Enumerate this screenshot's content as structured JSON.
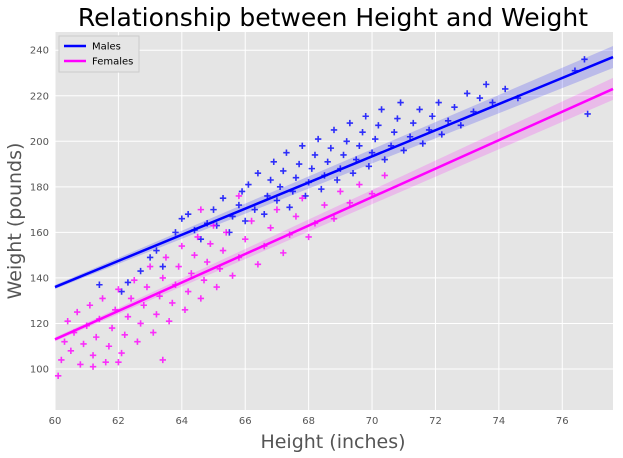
{
  "chart_data": {
    "type": "scatter",
    "title": "Relationship between Height and Weight",
    "xlabel": "Height (inches)",
    "ylabel": "Weight (pounds)",
    "xlim": [
      60,
      77.6
    ],
    "ylim": [
      82,
      248
    ],
    "x_ticks": [
      60,
      62,
      64,
      66,
      68,
      70,
      72,
      74,
      76
    ],
    "y_ticks": [
      100,
      120,
      140,
      160,
      180,
      200,
      220,
      240
    ],
    "grid": true,
    "legend_position": "top-left",
    "series": [
      {
        "name": "Males",
        "marker": "+",
        "color": "#0000ff",
        "fit_line": {
          "x": [
            60,
            77.6
          ],
          "y": [
            136,
            237
          ]
        },
        "points": [
          [
            61.4,
            137
          ],
          [
            62.1,
            134
          ],
          [
            62.3,
            138
          ],
          [
            62.7,
            143
          ],
          [
            63.0,
            149
          ],
          [
            63.2,
            152
          ],
          [
            63.4,
            145
          ],
          [
            63.8,
            160
          ],
          [
            64.0,
            166
          ],
          [
            64.2,
            168
          ],
          [
            64.4,
            161
          ],
          [
            64.6,
            157
          ],
          [
            64.8,
            164
          ],
          [
            65.0,
            170
          ],
          [
            65.1,
            163
          ],
          [
            65.3,
            175
          ],
          [
            65.5,
            160
          ],
          [
            65.6,
            167
          ],
          [
            65.8,
            172
          ],
          [
            65.9,
            178
          ],
          [
            66.0,
            165
          ],
          [
            66.1,
            181
          ],
          [
            66.3,
            170
          ],
          [
            66.4,
            186
          ],
          [
            66.6,
            168
          ],
          [
            66.7,
            176
          ],
          [
            66.8,
            183
          ],
          [
            66.9,
            191
          ],
          [
            67.0,
            174
          ],
          [
            67.1,
            180
          ],
          [
            67.2,
            187
          ],
          [
            67.3,
            195
          ],
          [
            67.4,
            171
          ],
          [
            67.5,
            178
          ],
          [
            67.6,
            184
          ],
          [
            67.7,
            190
          ],
          [
            67.8,
            198
          ],
          [
            67.9,
            176
          ],
          [
            68.0,
            182
          ],
          [
            68.1,
            188
          ],
          [
            68.2,
            194
          ],
          [
            68.3,
            201
          ],
          [
            68.4,
            179
          ],
          [
            68.5,
            185
          ],
          [
            68.6,
            191
          ],
          [
            68.7,
            197
          ],
          [
            68.8,
            205
          ],
          [
            68.9,
            183
          ],
          [
            69.0,
            188
          ],
          [
            69.1,
            194
          ],
          [
            69.2,
            200
          ],
          [
            69.3,
            208
          ],
          [
            69.4,
            186
          ],
          [
            69.5,
            192
          ],
          [
            69.6,
            198
          ],
          [
            69.7,
            204
          ],
          [
            69.8,
            211
          ],
          [
            69.9,
            189
          ],
          [
            70.0,
            195
          ],
          [
            70.1,
            201
          ],
          [
            70.2,
            207
          ],
          [
            70.3,
            214
          ],
          [
            70.4,
            192
          ],
          [
            70.6,
            198
          ],
          [
            70.7,
            204
          ],
          [
            70.8,
            210
          ],
          [
            70.9,
            217
          ],
          [
            71.0,
            196
          ],
          [
            71.2,
            202
          ],
          [
            71.3,
            208
          ],
          [
            71.5,
            214
          ],
          [
            71.6,
            199
          ],
          [
            71.8,
            205
          ],
          [
            71.9,
            211
          ],
          [
            72.1,
            217
          ],
          [
            72.2,
            203
          ],
          [
            72.4,
            209
          ],
          [
            72.6,
            215
          ],
          [
            72.8,
            207
          ],
          [
            73.0,
            221
          ],
          [
            73.2,
            213
          ],
          [
            73.4,
            219
          ],
          [
            73.6,
            225
          ],
          [
            73.8,
            217
          ],
          [
            74.2,
            223
          ],
          [
            74.6,
            219
          ],
          [
            76.4,
            231
          ],
          [
            76.7,
            236
          ],
          [
            76.8,
            212
          ]
        ]
      },
      {
        "name": "Females",
        "marker": "+",
        "color": "#ff00ff",
        "fit_line": {
          "x": [
            60,
            77.6
          ],
          "y": [
            113,
            223
          ]
        },
        "points": [
          [
            60.1,
            97
          ],
          [
            60.2,
            104
          ],
          [
            60.3,
            112
          ],
          [
            60.4,
            121
          ],
          [
            60.5,
            108
          ],
          [
            60.6,
            116
          ],
          [
            60.7,
            125
          ],
          [
            60.8,
            102
          ],
          [
            60.9,
            111
          ],
          [
            61.0,
            119
          ],
          [
            61.1,
            128
          ],
          [
            61.2,
            106
          ],
          [
            61.3,
            114
          ],
          [
            61.4,
            122
          ],
          [
            61.5,
            131
          ],
          [
            61.6,
            103
          ],
          [
            61.7,
            110
          ],
          [
            61.8,
            118
          ],
          [
            61.9,
            126
          ],
          [
            62.0,
            135
          ],
          [
            62.1,
            107
          ],
          [
            62.2,
            115
          ],
          [
            62.3,
            123
          ],
          [
            62.4,
            131
          ],
          [
            62.5,
            139
          ],
          [
            62.6,
            112
          ],
          [
            62.7,
            120
          ],
          [
            62.8,
            128
          ],
          [
            62.9,
            136
          ],
          [
            63.0,
            145
          ],
          [
            63.1,
            116
          ],
          [
            63.2,
            124
          ],
          [
            63.3,
            132
          ],
          [
            63.4,
            140
          ],
          [
            63.5,
            149
          ],
          [
            63.6,
            121
          ],
          [
            63.7,
            129
          ],
          [
            63.8,
            137
          ],
          [
            63.9,
            145
          ],
          [
            64.0,
            154
          ],
          [
            64.1,
            126
          ],
          [
            64.2,
            134
          ],
          [
            64.3,
            142
          ],
          [
            64.4,
            150
          ],
          [
            64.5,
            158
          ],
          [
            64.6,
            131
          ],
          [
            64.7,
            139
          ],
          [
            64.8,
            147
          ],
          [
            64.9,
            155
          ],
          [
            65.0,
            163
          ],
          [
            65.1,
            136
          ],
          [
            65.2,
            144
          ],
          [
            65.3,
            152
          ],
          [
            65.4,
            160
          ],
          [
            65.6,
            141
          ],
          [
            65.8,
            149
          ],
          [
            66.0,
            157
          ],
          [
            66.2,
            165
          ],
          [
            66.4,
            146
          ],
          [
            66.6,
            154
          ],
          [
            66.8,
            162
          ],
          [
            67.0,
            170
          ],
          [
            67.2,
            151
          ],
          [
            67.4,
            159
          ],
          [
            67.6,
            167
          ],
          [
            67.8,
            175
          ],
          [
            68.0,
            158
          ],
          [
            68.2,
            164
          ],
          [
            68.5,
            172
          ],
          [
            68.8,
            166
          ],
          [
            69.0,
            178
          ],
          [
            69.3,
            173
          ],
          [
            69.6,
            181
          ],
          [
            70.0,
            177
          ],
          [
            70.4,
            185
          ],
          [
            64.6,
            170
          ],
          [
            65.8,
            176
          ],
          [
            63.4,
            104
          ],
          [
            62.0,
            103
          ],
          [
            61.2,
            101
          ]
        ]
      }
    ]
  }
}
